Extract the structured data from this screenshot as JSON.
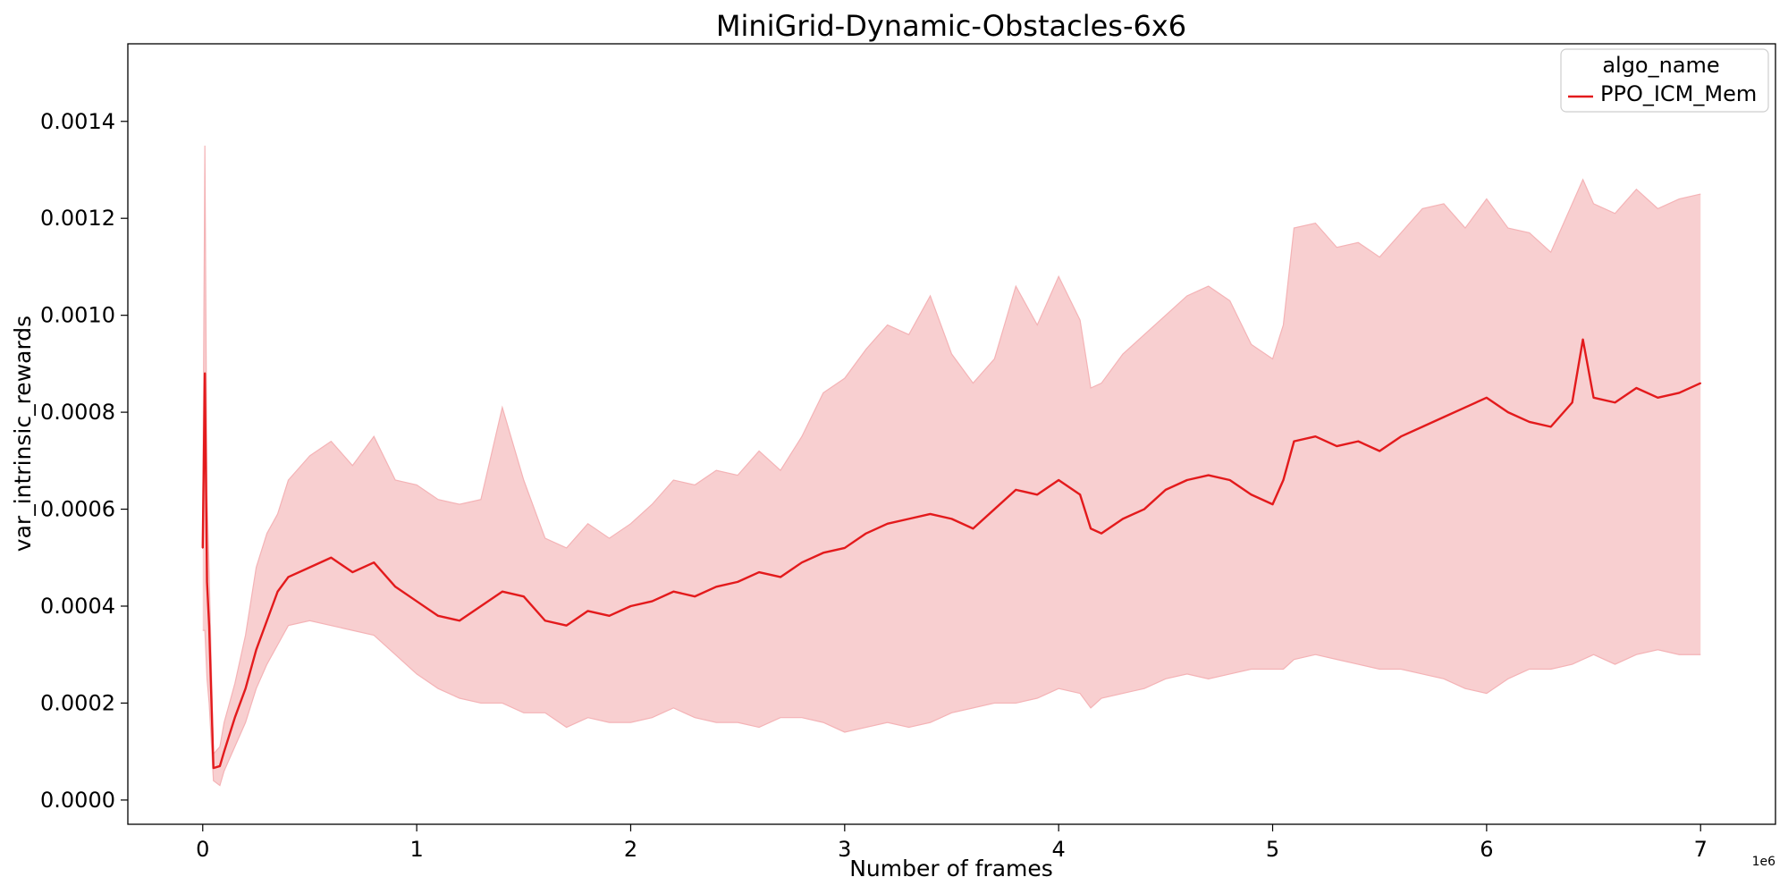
{
  "chart_data": {
    "type": "line",
    "title": "MiniGrid-Dynamic-Obstacles-6x6",
    "xlabel": "Number of frames",
    "ylabel": "var_intrinsic_rewards",
    "x_offset_label": "1e6",
    "xlim": [
      -0.35,
      7.35
    ],
    "ylim": [
      -5e-05,
      0.00156
    ],
    "x_ticks": [
      0,
      1,
      2,
      3,
      4,
      5,
      6,
      7
    ],
    "x_tick_labels": [
      "0",
      "1",
      "2",
      "3",
      "4",
      "5",
      "6",
      "7"
    ],
    "y_ticks": [
      0.0,
      0.0002,
      0.0004,
      0.0006,
      0.0008,
      0.001,
      0.0012,
      0.0014
    ],
    "y_tick_labels": [
      "0.0000",
      "0.0002",
      "0.0004",
      "0.0006",
      "0.0008",
      "0.0010",
      "0.0012",
      "0.0014"
    ],
    "grid": false,
    "legend": {
      "title": "algo_name",
      "placement": "top-right",
      "entries": [
        "PPO_ICM_Mem"
      ]
    },
    "series": [
      {
        "name": "PPO_ICM_Mem",
        "color": "#e31a1c",
        "band_color": "#f8cfd0",
        "band_edge_color": "#f4b3b6",
        "x": [
          0.0,
          0.01,
          0.02,
          0.03,
          0.05,
          0.08,
          0.1,
          0.15,
          0.2,
          0.25,
          0.3,
          0.35,
          0.4,
          0.5,
          0.6,
          0.7,
          0.8,
          0.9,
          1.0,
          1.1,
          1.2,
          1.3,
          1.4,
          1.5,
          1.6,
          1.7,
          1.8,
          1.9,
          2.0,
          2.1,
          2.2,
          2.3,
          2.4,
          2.5,
          2.6,
          2.7,
          2.8,
          2.9,
          3.0,
          3.1,
          3.2,
          3.3,
          3.4,
          3.5,
          3.6,
          3.7,
          3.8,
          3.9,
          4.0,
          4.1,
          4.15,
          4.2,
          4.3,
          4.4,
          4.5,
          4.6,
          4.7,
          4.8,
          4.9,
          5.0,
          5.05,
          5.1,
          5.2,
          5.3,
          5.4,
          5.5,
          5.6,
          5.7,
          5.8,
          5.9,
          6.0,
          6.1,
          6.2,
          6.3,
          6.4,
          6.45,
          6.5,
          6.6,
          6.7,
          6.8,
          6.9,
          7.0
        ],
        "mean": [
          0.00052,
          0.00088,
          0.00045,
          0.00036,
          6.6e-05,
          7e-05,
          0.0001,
          0.00017,
          0.00023,
          0.00031,
          0.00037,
          0.00043,
          0.00046,
          0.00048,
          0.0005,
          0.00047,
          0.00049,
          0.00044,
          0.00041,
          0.00038,
          0.00037,
          0.0004,
          0.00043,
          0.00042,
          0.00037,
          0.00036,
          0.00039,
          0.00038,
          0.0004,
          0.00041,
          0.00043,
          0.00042,
          0.00044,
          0.00045,
          0.00047,
          0.00046,
          0.00049,
          0.00051,
          0.00052,
          0.00055,
          0.00057,
          0.00058,
          0.00059,
          0.00058,
          0.00056,
          0.0006,
          0.00064,
          0.00063,
          0.00066,
          0.00063,
          0.00056,
          0.00055,
          0.00058,
          0.0006,
          0.00064,
          0.00066,
          0.00067,
          0.00066,
          0.00063,
          0.00061,
          0.00066,
          0.00074,
          0.00075,
          0.00073,
          0.00074,
          0.00072,
          0.00075,
          0.00077,
          0.00079,
          0.00081,
          0.00083,
          0.0008,
          0.00078,
          0.00077,
          0.00082,
          0.00095,
          0.00083,
          0.00082,
          0.00085,
          0.00083,
          0.00084,
          0.00086
        ],
        "lower": [
          0.00035,
          0.00035,
          0.00025,
          0.0002,
          4e-05,
          3e-05,
          6e-05,
          0.00011,
          0.00016,
          0.00023,
          0.00028,
          0.00032,
          0.00036,
          0.00037,
          0.00036,
          0.00035,
          0.00034,
          0.0003,
          0.00026,
          0.00023,
          0.00021,
          0.0002,
          0.0002,
          0.00018,
          0.00018,
          0.00015,
          0.00017,
          0.00016,
          0.00016,
          0.00017,
          0.00019,
          0.00017,
          0.00016,
          0.00016,
          0.00015,
          0.00017,
          0.00017,
          0.00016,
          0.00014,
          0.00015,
          0.00016,
          0.00015,
          0.00016,
          0.00018,
          0.00019,
          0.0002,
          0.0002,
          0.00021,
          0.00023,
          0.00022,
          0.00019,
          0.00021,
          0.00022,
          0.00023,
          0.00025,
          0.00026,
          0.00025,
          0.00026,
          0.00027,
          0.00027,
          0.00027,
          0.00029,
          0.0003,
          0.00029,
          0.00028,
          0.00027,
          0.00027,
          0.00026,
          0.00025,
          0.00023,
          0.00022,
          0.00025,
          0.00027,
          0.00027,
          0.00028,
          0.00029,
          0.0003,
          0.00028,
          0.0003,
          0.00031,
          0.0003,
          0.0003
        ],
        "upper": [
          0.00058,
          0.00135,
          0.00063,
          0.00047,
          9.5e-05,
          0.00011,
          0.00016,
          0.00024,
          0.00034,
          0.00048,
          0.00055,
          0.00059,
          0.00066,
          0.00071,
          0.00074,
          0.00069,
          0.00075,
          0.00066,
          0.00065,
          0.00062,
          0.00061,
          0.00062,
          0.00081,
          0.00066,
          0.00054,
          0.00052,
          0.00057,
          0.00054,
          0.00057,
          0.00061,
          0.00066,
          0.00065,
          0.00068,
          0.00067,
          0.00072,
          0.00068,
          0.00075,
          0.00084,
          0.00087,
          0.00093,
          0.00098,
          0.00096,
          0.00104,
          0.00092,
          0.00086,
          0.00091,
          0.00106,
          0.00098,
          0.00108,
          0.00099,
          0.00085,
          0.00086,
          0.00092,
          0.00096,
          0.001,
          0.00104,
          0.00106,
          0.00103,
          0.00094,
          0.00091,
          0.00098,
          0.00118,
          0.00119,
          0.00114,
          0.00115,
          0.00112,
          0.00117,
          0.00122,
          0.00123,
          0.00118,
          0.00124,
          0.00118,
          0.00117,
          0.00113,
          0.00123,
          0.00128,
          0.00123,
          0.00121,
          0.00126,
          0.00122,
          0.00124,
          0.00125
        ]
      }
    ]
  }
}
